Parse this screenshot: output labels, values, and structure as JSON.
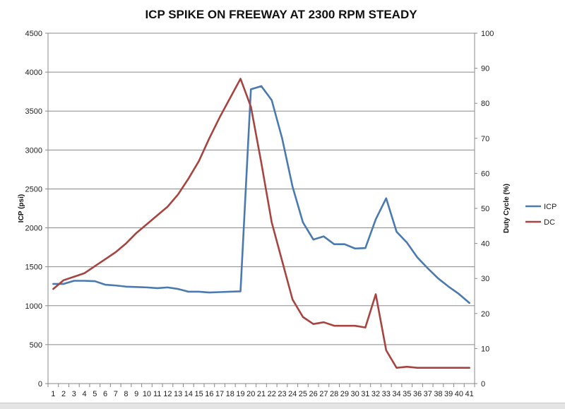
{
  "chart_data": {
    "type": "line",
    "title": "ICP SPIKE ON FREEWAY AT 2300 RPM STEADY",
    "xlabel": "",
    "ylabel": "ICP (psi)",
    "y2label": "Duty Cycle (%)",
    "x": [
      1,
      2,
      3,
      4,
      5,
      6,
      7,
      8,
      9,
      10,
      11,
      12,
      13,
      14,
      15,
      16,
      17,
      18,
      19,
      20,
      21,
      22,
      23,
      24,
      25,
      26,
      27,
      28,
      29,
      30,
      31,
      32,
      33,
      34,
      35,
      36,
      37,
      38,
      39,
      40,
      41
    ],
    "x_tick_labels": [
      "1",
      "2",
      "3",
      "4",
      "5",
      "6",
      "7",
      "8",
      "9",
      "10",
      "11",
      "12",
      "13",
      "14",
      "15",
      "16",
      "17",
      "18",
      "19",
      "20",
      "21",
      "22",
      "23",
      "24",
      "25",
      "26",
      "27",
      "28",
      "29",
      "30",
      "31",
      "32",
      "33",
      "34",
      "35",
      "36",
      "37",
      "38",
      "39",
      "40",
      "41"
    ],
    "ylim": [
      0,
      4500
    ],
    "y_ticks": [
      0,
      500,
      1000,
      1500,
      2000,
      2500,
      3000,
      3500,
      4000,
      4500
    ],
    "y_tick_labels": [
      "0",
      "500",
      "1000",
      "1500",
      "2000",
      "2500",
      "3000",
      "3500",
      "4000",
      "4500"
    ],
    "y2lim": [
      0,
      100
    ],
    "y2_ticks": [
      0,
      10,
      20,
      30,
      40,
      50,
      60,
      70,
      80,
      90,
      100
    ],
    "y2_tick_labels": [
      "0",
      "10",
      "20",
      "30",
      "40",
      "50",
      "60",
      "70",
      "80",
      "90",
      "100"
    ],
    "grid": true,
    "legend_position": "right",
    "series": [
      {
        "name": "ICP",
        "axis": "left",
        "color": "#4a7ab0",
        "values": [
          1280,
          1280,
          1320,
          1320,
          1315,
          1270,
          1260,
          1245,
          1240,
          1235,
          1225,
          1235,
          1215,
          1180,
          1180,
          1170,
          1175,
          1180,
          1185,
          3780,
          3820,
          3640,
          3150,
          2530,
          2070,
          1850,
          1890,
          1790,
          1790,
          1735,
          1740,
          2110,
          2380,
          1950,
          1810,
          1620,
          1480,
          1350,
          1245,
          1150,
          1035
        ]
      },
      {
        "name": "DC",
        "axis": "right",
        "color": "#a84440",
        "values": [
          27,
          29.5,
          30.5,
          31.5,
          33.5,
          35.5,
          37.5,
          40,
          43,
          45.5,
          48,
          50.5,
          54,
          58.5,
          63.5,
          70,
          76,
          81.5,
          87,
          79,
          63,
          46,
          35,
          24,
          19,
          17,
          17.5,
          16.5,
          16.5,
          16.5,
          16,
          25.5,
          9.5,
          4.5,
          4.8,
          4.5,
          4.5,
          4.5,
          4.5,
          4.5,
          4.5
        ]
      }
    ]
  }
}
